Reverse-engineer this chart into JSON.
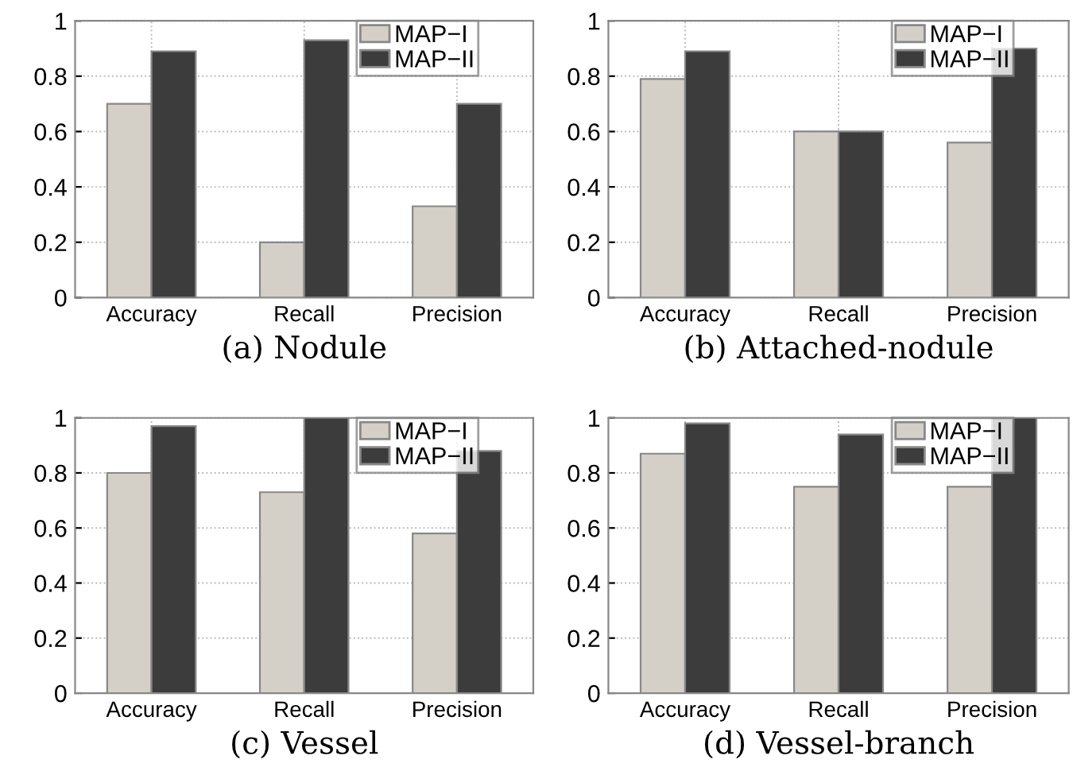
{
  "chart_data": [
    {
      "type": "bar",
      "xlabel": "(a) Nodule",
      "categories": [
        "Accuracy",
        "Recall",
        "Precision"
      ],
      "series": [
        {
          "name": "MAP−I",
          "color": "#d4d0c8",
          "values": [
            0.7,
            0.2,
            0.33
          ]
        },
        {
          "name": "MAP−II",
          "color": "#3c3c3c",
          "values": [
            0.89,
            0.93,
            0.7
          ]
        }
      ],
      "ylim": [
        0,
        1
      ],
      "yticks": [
        0,
        0.2,
        0.4,
        0.6,
        0.8,
        1
      ],
      "grid": true,
      "legend": "top right"
    },
    {
      "type": "bar",
      "xlabel": "(b) Attached-nodule",
      "categories": [
        "Accuracy",
        "Recall",
        "Precision"
      ],
      "series": [
        {
          "name": "MAP−I",
          "color": "#d4d0c8",
          "values": [
            0.79,
            0.6,
            0.56
          ]
        },
        {
          "name": "MAP−II",
          "color": "#3c3c3c",
          "values": [
            0.89,
            0.6,
            0.9
          ]
        }
      ],
      "ylim": [
        0,
        1
      ],
      "yticks": [
        0,
        0.2,
        0.4,
        0.6,
        0.8,
        1
      ],
      "grid": true,
      "legend": "top right"
    },
    {
      "type": "bar",
      "xlabel": "(c) Vessel",
      "categories": [
        "Accuracy",
        "Recall",
        "Precision"
      ],
      "series": [
        {
          "name": "MAP−I",
          "color": "#d4d0c8",
          "values": [
            0.8,
            0.73,
            0.58
          ]
        },
        {
          "name": "MAP−II",
          "color": "#3c3c3c",
          "values": [
            0.97,
            1.0,
            0.88
          ]
        }
      ],
      "ylim": [
        0,
        1
      ],
      "yticks": [
        0,
        0.2,
        0.4,
        0.6,
        0.8,
        1
      ],
      "grid": true,
      "legend": "top right"
    },
    {
      "type": "bar",
      "xlabel": "(d) Vessel-branch",
      "categories": [
        "Accuracy",
        "Recall",
        "Precision"
      ],
      "series": [
        {
          "name": "MAP−I",
          "color": "#d4d0c8",
          "values": [
            0.87,
            0.75,
            0.75
          ]
        },
        {
          "name": "MAP−II",
          "color": "#3c3c3c",
          "values": [
            0.98,
            0.94,
            1.0
          ]
        }
      ],
      "ylim": [
        0,
        1
      ],
      "yticks": [
        0,
        0.2,
        0.4,
        0.6,
        0.8,
        1
      ],
      "grid": true,
      "legend": "top right"
    }
  ]
}
